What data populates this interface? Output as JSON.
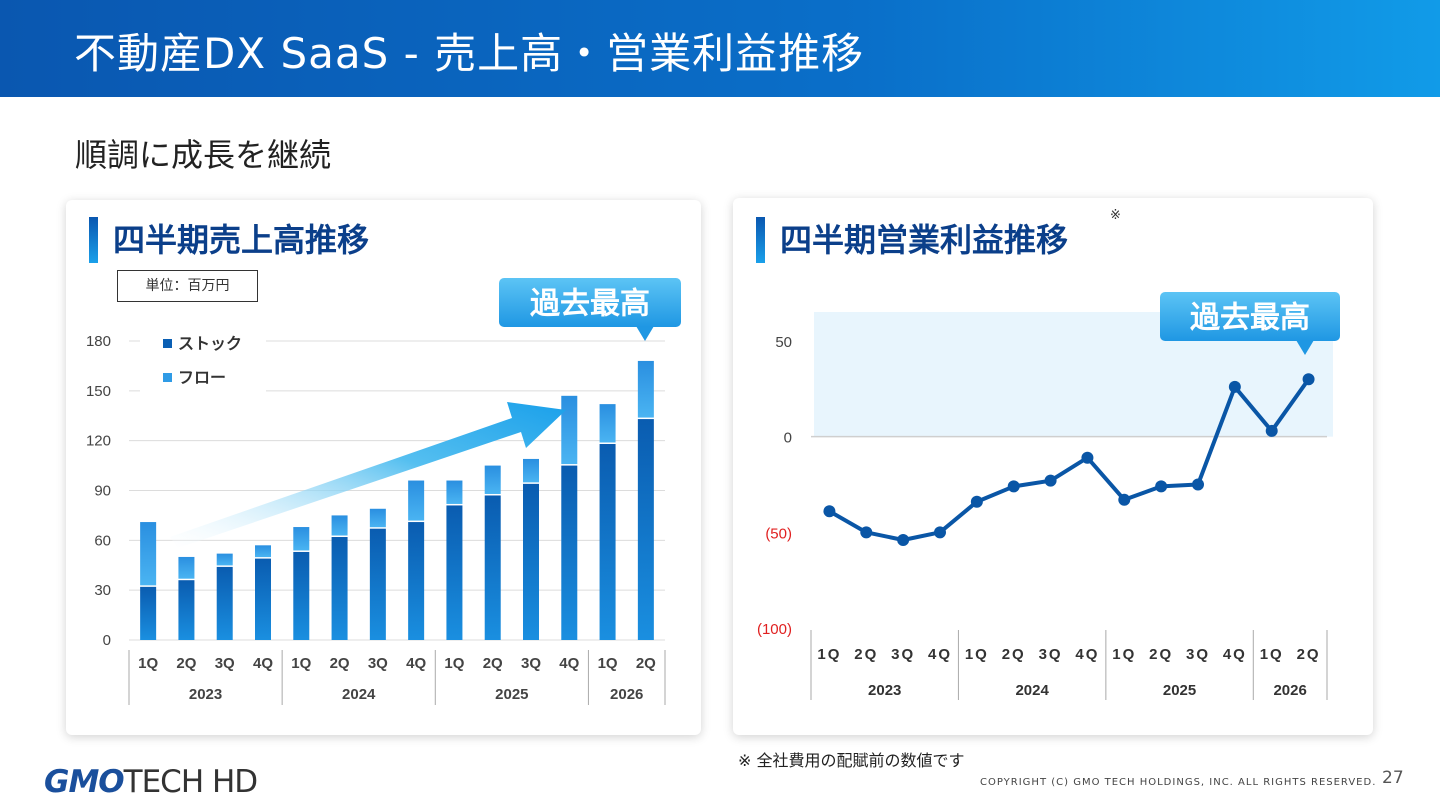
{
  "header": {
    "title": "不動産DX SaaS - 売上高・営業利益推移"
  },
  "subtitle": "順調に成長を継続",
  "left_panel": {
    "title": "四半期売上高推移",
    "unit": "単位：百万円",
    "badge": "過去最高"
  },
  "right_panel": {
    "title": "四半期営業利益推移",
    "note_mark": "※",
    "badge": "過去最高"
  },
  "footnote": "※ 全社費用の配賦前の数値です",
  "footer": {
    "logo_gmo": "GMO",
    "logo_rest": "TECH HD",
    "copyright": "COPYRIGHT (C) GMO TECH HOLDINGS, INC. ALL RIGHTS RESERVED.",
    "page": "27"
  },
  "colors": {
    "header": "#0a57b0",
    "stock": "#0a5fb4",
    "flow": "#2f9be6",
    "line": "#0a56a6",
    "badge": "#2fa6ea",
    "negative": "#e02020"
  },
  "chart_data": [
    {
      "type": "bar",
      "stacked": true,
      "categories": [
        "1Q",
        "2Q",
        "3Q",
        "4Q",
        "1Q",
        "2Q",
        "3Q",
        "4Q",
        "1Q",
        "2Q",
        "3Q",
        "4Q",
        "1Q",
        "2Q"
      ],
      "groups": [
        {
          "label": "2023",
          "count": 4
        },
        {
          "label": "2024",
          "count": 4
        },
        {
          "label": "2025",
          "count": 4
        },
        {
          "label": "2026",
          "count": 2
        }
      ],
      "series": [
        {
          "name": "ストック",
          "values": [
            32,
            36,
            44,
            49,
            53,
            62,
            67,
            71,
            81,
            87,
            94,
            105,
            118,
            133
          ]
        },
        {
          "name": "フロー",
          "values": [
            39,
            14,
            8,
            8,
            15,
            13,
            12,
            25,
            15,
            18,
            15,
            42,
            24,
            35
          ]
        }
      ],
      "ylim": [
        0,
        180
      ],
      "yticks": [
        "0",
        "30",
        "60",
        "90",
        "120",
        "150",
        "180"
      ],
      "legend_position": "top-left",
      "grid": true
    },
    {
      "type": "line",
      "categories": [
        "1Q",
        "2Q",
        "3Q",
        "4Q",
        "1Q",
        "2Q",
        "3Q",
        "4Q",
        "1Q",
        "2Q",
        "3Q",
        "4Q",
        "1Q",
        "2Q"
      ],
      "groups": [
        {
          "label": "2023",
          "count": 4
        },
        {
          "label": "2024",
          "count": 4
        },
        {
          "label": "2025",
          "count": 4
        },
        {
          "label": "2026",
          "count": 2
        }
      ],
      "values": [
        -39,
        -50,
        -54,
        -50,
        -34,
        -26,
        -23,
        -11,
        -33,
        -26,
        -25,
        26,
        3,
        30
      ],
      "ylim": [
        -100,
        50
      ],
      "yticks": [
        {
          "value": 50,
          "label": "50"
        },
        {
          "value": 0,
          "label": "0"
        },
        {
          "value": -50,
          "label": "(50)"
        },
        {
          "value": -100,
          "label": "(100)"
        }
      ],
      "grid": false
    }
  ]
}
